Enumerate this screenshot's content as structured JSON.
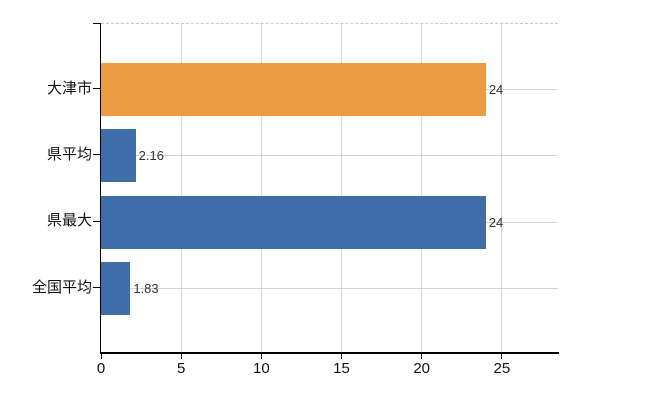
{
  "chart_data": {
    "type": "bar",
    "orientation": "horizontal",
    "title": "",
    "xlabel": "",
    "ylabel": "",
    "categories": [
      "大津市",
      "県平均",
      "県最大",
      "全国平均"
    ],
    "values": [
      24,
      2.16,
      24,
      1.83
    ],
    "value_labels": [
      "24",
      "2.16",
      "24",
      "1.83"
    ],
    "bar_colors": [
      "#EE9C41",
      "#3E6DA9",
      "#3E6DA9",
      "#3E6DA9"
    ],
    "x_ticks": [
      0,
      5,
      10,
      15,
      20,
      25
    ],
    "xlim": [
      0,
      28.5
    ],
    "grid": true,
    "legend": false,
    "colors": {
      "highlight_bar": "#EE9C41",
      "default_bar": "#3E6DA9",
      "axis": "#000000",
      "vertical_gridline": "#d6d6d6",
      "horizontal_gridline": "#cfd5cf",
      "top_border_dashed": "#c9c9c9",
      "label_text": "#333333",
      "background": "#ffffff"
    }
  }
}
